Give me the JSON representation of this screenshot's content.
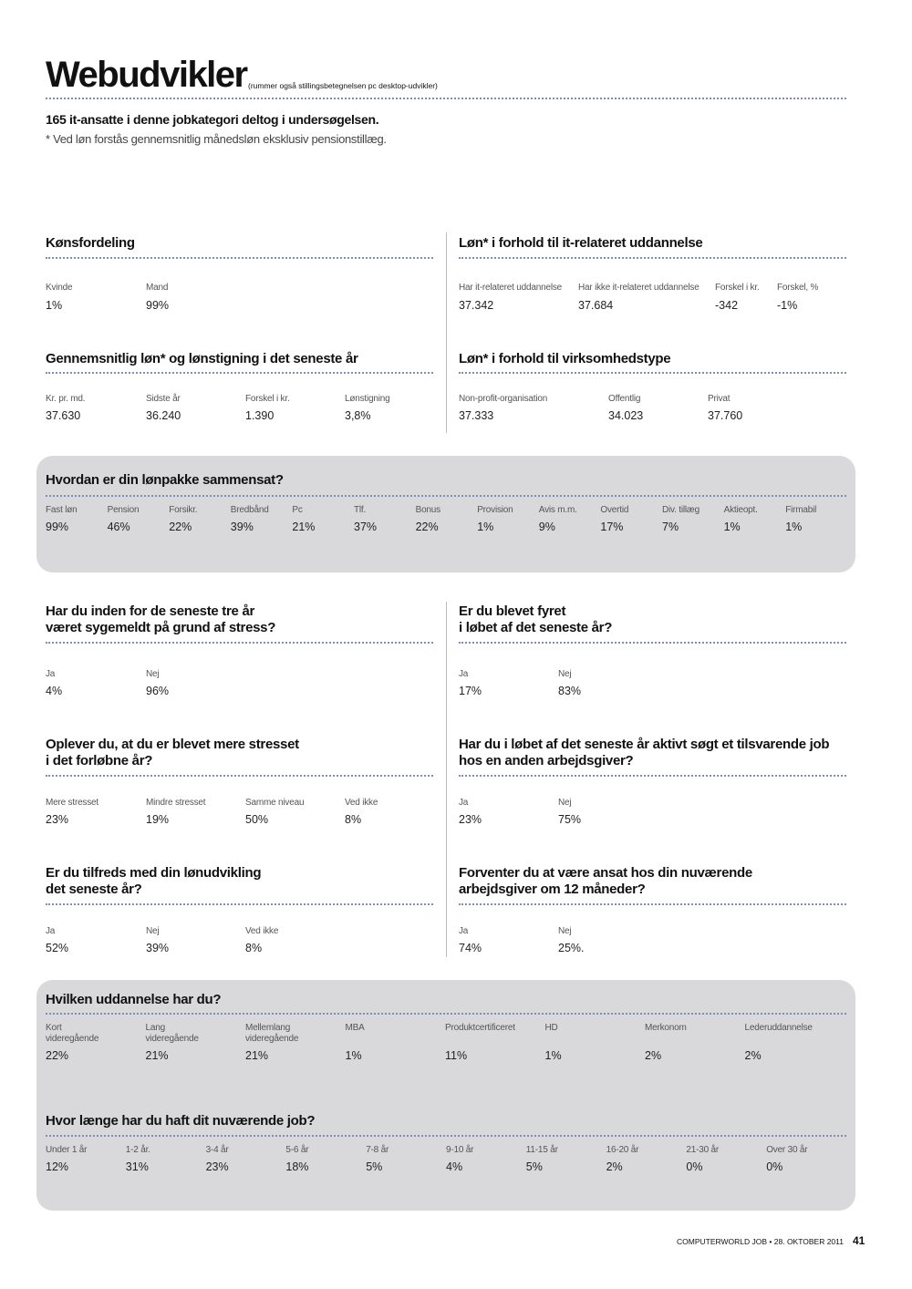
{
  "header": {
    "title": "Webudvikler",
    "subtitle": "(rummer også stillingsbetegnelsen pc desktop-udvikler)",
    "intro": "165 it-ansatte i denne jobkategori deltog i undersøgelsen.",
    "note": "* Ved løn forstås gennemsnitlig månedsløn eksklusiv pensionstillæg."
  },
  "sections": [
    {
      "title": "Kønsfordeling",
      "columns": [
        {
          "label": "Kvinde",
          "value": "1%"
        },
        {
          "label": "Mand",
          "value": "99%"
        }
      ]
    },
    {
      "title": "Løn* i forhold til it-relateret uddannelse",
      "columns": [
        {
          "label": "Har it-relateret uddannelse",
          "value": "37.342"
        },
        {
          "label": "Har ikke it-relateret uddannelse",
          "value": "37.684"
        },
        {
          "label": "Forskel i kr.",
          "value": "-342"
        },
        {
          "label": "Forskel, %",
          "value": "-1%"
        }
      ]
    },
    {
      "title": "Gennemsnitlig løn* og lønstigning i det seneste år",
      "columns": [
        {
          "label": "Kr. pr. md.",
          "value": "37.630"
        },
        {
          "label": "Sidste år",
          "value": "36.240"
        },
        {
          "label": "Forskel i kr.",
          "value": "1.390"
        },
        {
          "label": "Lønstigning",
          "value": "3,8%"
        }
      ]
    },
    {
      "title": "Løn* i forhold til virksomhedstype",
      "columns": [
        {
          "label": "Non-profit-organisation",
          "value": "37.333"
        },
        {
          "label": "Offentlig",
          "value": "34.023"
        },
        {
          "label": "Privat",
          "value": "37.760"
        }
      ]
    },
    {
      "title": "Hvordan er din lønpakke sammensat?",
      "columns": [
        {
          "label": "Fast løn",
          "value": "99%"
        },
        {
          "label": "Pension",
          "value": "46%"
        },
        {
          "label": "Forsikr.",
          "value": "22%"
        },
        {
          "label": "Bredbånd",
          "value": "39%"
        },
        {
          "label": "Pc",
          "value": "21%"
        },
        {
          "label": "Tlf.",
          "value": "37%"
        },
        {
          "label": "Bonus",
          "value": "22%"
        },
        {
          "label": "Provision",
          "value": "1%"
        },
        {
          "label": "Avis m.m.",
          "value": "9%"
        },
        {
          "label": "Overtid",
          "value": "17%"
        },
        {
          "label": "Div. tillæg",
          "value": "7%"
        },
        {
          "label": "Aktieopt.",
          "value": "1%"
        },
        {
          "label": "Firmabil",
          "value": "1%"
        }
      ]
    },
    {
      "title": "Har du inden for de seneste tre år\nværet sygemeldt på grund af stress?",
      "columns": [
        {
          "label": "Ja",
          "value": "4%"
        },
        {
          "label": "Nej",
          "value": "96%"
        }
      ]
    },
    {
      "title": "Er du blevet fyret\ni løbet af det seneste år?",
      "columns": [
        {
          "label": "Ja",
          "value": "17%"
        },
        {
          "label": "Nej",
          "value": "83%"
        }
      ]
    },
    {
      "title": "Oplever du, at du er blevet mere stresset\ni det forløbne år?",
      "columns": [
        {
          "label": "Mere stresset",
          "value": "23%"
        },
        {
          "label": "Mindre stresset",
          "value": "19%"
        },
        {
          "label": "Samme niveau",
          "value": "50%"
        },
        {
          "label": "Ved ikke",
          "value": "8%"
        }
      ]
    },
    {
      "title": "Har du i løbet af det seneste år aktivt søgt et tilsvarende job\nhos en anden arbejdsgiver?",
      "columns": [
        {
          "label": "Ja",
          "value": "23%"
        },
        {
          "label": "Nej",
          "value": "75%"
        }
      ]
    },
    {
      "title": "Er du tilfreds med din lønudvikling\ndet seneste år?",
      "columns": [
        {
          "label": "Ja",
          "value": "52%"
        },
        {
          "label": "Nej",
          "value": "39%"
        },
        {
          "label": "Ved ikke",
          "value": "8%"
        }
      ]
    },
    {
      "title": "Forventer du at være ansat hos din nuværende\narbejdsgiver om 12 måneder?",
      "columns": [
        {
          "label": "Ja",
          "value": "74%"
        },
        {
          "label": "Nej",
          "value": "25%."
        }
      ]
    },
    {
      "title": "Hvilken uddannelse har du?",
      "columns": [
        {
          "label": "Kort\nvideregående",
          "value": "22%"
        },
        {
          "label": "Lang\nvideregående",
          "value": "21%"
        },
        {
          "label": "Mellemlang\nvideregående",
          "value": "21%"
        },
        {
          "label": "MBA",
          "value": "1%"
        },
        {
          "label": "Produktcertificeret",
          "value": "11%"
        },
        {
          "label": "HD",
          "value": "1%"
        },
        {
          "label": "Merkonom",
          "value": "2%"
        },
        {
          "label": "Lederuddannelse",
          "value": "2%"
        }
      ]
    },
    {
      "title": "Hvor længe har du haft dit nuværende job?",
      "columns": [
        {
          "label": "Under 1 år",
          "value": "12%"
        },
        {
          "label": "1-2 år.",
          "value": "31%"
        },
        {
          "label": "3-4 år",
          "value": "23%"
        },
        {
          "label": "5-6 år",
          "value": "18%"
        },
        {
          "label": "7-8 år",
          "value": "5%"
        },
        {
          "label": "9-10 år",
          "value": "4%"
        },
        {
          "label": "11-15 år",
          "value": "5%"
        },
        {
          "label": "16-20 år",
          "value": "2%"
        },
        {
          "label": "21-30 år",
          "value": "0%"
        },
        {
          "label": "Over 30 år",
          "value": "0%"
        }
      ]
    }
  ],
  "footer": {
    "publication": "COMPUTERWORLD JOB • 28. OKTOBER 2011",
    "page": "41"
  }
}
